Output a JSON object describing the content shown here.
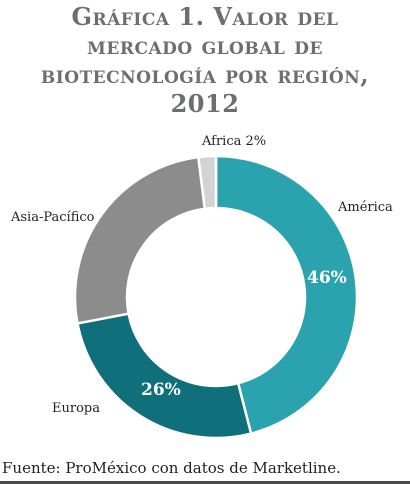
{
  "chart_data": {
    "type": "pie",
    "title_lines": [
      "Gráfica 1. Valor del",
      "mercado global de",
      "biotecnología por región,",
      "2012"
    ],
    "slices": [
      {
        "name": "América",
        "value": 46,
        "value_label": "46%",
        "color": "#2aa3ae"
      },
      {
        "name": "Europa",
        "value": 26,
        "value_label": "26%",
        "color": "#0f6f7a"
      },
      {
        "name": "Asia-Pacífico",
        "value": 26,
        "value_label": "",
        "color": "#8c8c8d"
      },
      {
        "name": "Africa 2%",
        "value": 2,
        "value_label": "",
        "color": "#d3d3d4"
      }
    ],
    "legend": "none"
  },
  "source": "Fuente: ProMéxico con datos de Marketline."
}
